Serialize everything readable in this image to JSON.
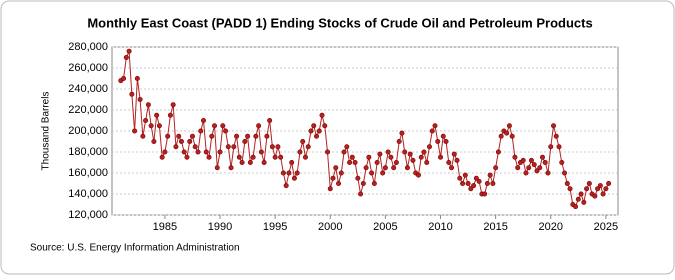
{
  "chart_data": {
    "type": "line",
    "title": "Monthly East Coast (PADD 1) Ending Stocks of Crude Oil and Petroleum Products",
    "y_label": "Thousand Barrels",
    "source": "Source: U.S. Energy Information Administration",
    "xlim": [
      1980.2,
      2026.1
    ],
    "xticks": [
      1985,
      1990,
      1995,
      2000,
      2005,
      2010,
      2015,
      2020,
      2025
    ],
    "ylim": [
      120000,
      280000
    ],
    "yticks": [
      {
        "value": 120000,
        "label": "120,000"
      },
      {
        "value": 140000,
        "label": "140,000"
      },
      {
        "value": 160000,
        "label": "160,000"
      },
      {
        "value": 180000,
        "label": "180,000"
      },
      {
        "value": 200000,
        "label": "200,000"
      },
      {
        "value": 220000,
        "label": "220,000"
      },
      {
        "value": 240000,
        "label": "240,000"
      },
      {
        "value": 260000,
        "label": "260,000"
      },
      {
        "value": 280000,
        "label": "280,000"
      }
    ],
    "grid": true,
    "series": [
      {
        "name": "East Coast (PADD 1) Ending Stocks",
        "color": "#b22222",
        "x": [
          1981,
          1981.25,
          1981.5,
          1981.75,
          1982,
          1982.25,
          1982.5,
          1982.75,
          1983,
          1983.25,
          1983.5,
          1983.75,
          1984,
          1984.25,
          1984.5,
          1984.75,
          1985,
          1985.25,
          1985.5,
          1985.75,
          1986,
          1986.25,
          1986.5,
          1986.75,
          1987,
          1987.25,
          1987.5,
          1987.75,
          1988,
          1988.25,
          1988.5,
          1988.75,
          1989,
          1989.25,
          1989.5,
          1989.75,
          1990,
          1990.25,
          1990.5,
          1990.75,
          1991,
          1991.25,
          1991.5,
          1991.75,
          1992,
          1992.25,
          1992.5,
          1992.75,
          1993,
          1993.25,
          1993.5,
          1993.75,
          1994,
          1994.25,
          1994.5,
          1994.75,
          1995,
          1995.25,
          1995.5,
          1995.75,
          1996,
          1996.25,
          1996.5,
          1996.75,
          1997,
          1997.25,
          1997.5,
          1997.75,
          1998,
          1998.25,
          1998.5,
          1998.75,
          1999,
          1999.25,
          1999.5,
          1999.75,
          2000,
          2000.25,
          2000.5,
          2000.75,
          2001,
          2001.25,
          2001.5,
          2001.75,
          2002,
          2002.25,
          2002.5,
          2002.75,
          2003,
          2003.25,
          2003.5,
          2003.75,
          2004,
          2004.25,
          2004.5,
          2004.75,
          2005,
          2005.25,
          2005.5,
          2005.75,
          2006,
          2006.25,
          2006.5,
          2006.75,
          2007,
          2007.25,
          2007.5,
          2007.75,
          2008,
          2008.25,
          2008.5,
          2008.75,
          2009,
          2009.25,
          2009.5,
          2009.75,
          2010,
          2010.25,
          2010.5,
          2010.75,
          2011,
          2011.25,
          2011.5,
          2011.75,
          2012,
          2012.25,
          2012.5,
          2012.75,
          2013,
          2013.25,
          2013.5,
          2013.75,
          2014,
          2014.25,
          2014.5,
          2014.75,
          2015,
          2015.25,
          2015.5,
          2015.75,
          2016,
          2016.25,
          2016.5,
          2016.75,
          2017,
          2017.25,
          2017.5,
          2017.75,
          2018,
          2018.25,
          2018.5,
          2018.75,
          2019,
          2019.25,
          2019.5,
          2019.75,
          2020,
          2020.25,
          2020.5,
          2020.75,
          2021,
          2021.25,
          2021.5,
          2021.75,
          2022,
          2022.25,
          2022.5,
          2022.75,
          2023,
          2023.25,
          2023.5,
          2023.75,
          2024,
          2024.25,
          2024.5,
          2024.75,
          2025,
          2025.25
        ],
        "values": [
          248000,
          250000,
          270000,
          276000,
          235000,
          200000,
          250000,
          230000,
          195000,
          210000,
          225000,
          205000,
          190000,
          215000,
          205000,
          175000,
          180000,
          195000,
          215000,
          225000,
          185000,
          195000,
          190000,
          180000,
          175000,
          190000,
          195000,
          185000,
          180000,
          200000,
          210000,
          180000,
          175000,
          195000,
          205000,
          165000,
          180000,
          205000,
          200000,
          185000,
          165000,
          185000,
          195000,
          175000,
          170000,
          190000,
          195000,
          170000,
          175000,
          195000,
          205000,
          180000,
          170000,
          195000,
          210000,
          185000,
          175000,
          185000,
          175000,
          160000,
          148000,
          160000,
          170000,
          155000,
          160000,
          180000,
          190000,
          175000,
          185000,
          200000,
          205000,
          195000,
          200000,
          215000,
          205000,
          180000,
          145000,
          155000,
          165000,
          150000,
          160000,
          180000,
          185000,
          170000,
          175000,
          170000,
          155000,
          140000,
          150000,
          165000,
          175000,
          160000,
          150000,
          170000,
          178000,
          160000,
          165000,
          180000,
          175000,
          165000,
          170000,
          190000,
          198000,
          180000,
          165000,
          178000,
          172000,
          160000,
          158000,
          175000,
          180000,
          170000,
          185000,
          200000,
          205000,
          190000,
          175000,
          195000,
          190000,
          170000,
          165000,
          178000,
          172000,
          155000,
          150000,
          158000,
          150000,
          145000,
          148000,
          155000,
          152000,
          140000,
          140000,
          150000,
          158000,
          150000,
          165000,
          180000,
          195000,
          200000,
          198000,
          205000,
          195000,
          175000,
          165000,
          170000,
          172000,
          160000,
          165000,
          172000,
          168000,
          162000,
          165000,
          175000,
          170000,
          160000,
          185000,
          205000,
          195000,
          185000,
          170000,
          160000,
          150000,
          145000,
          130000,
          128000,
          135000,
          140000,
          132000,
          145000,
          150000,
          140000,
          138000,
          145000,
          148000,
          140000,
          145000,
          150000
        ]
      }
    ]
  }
}
